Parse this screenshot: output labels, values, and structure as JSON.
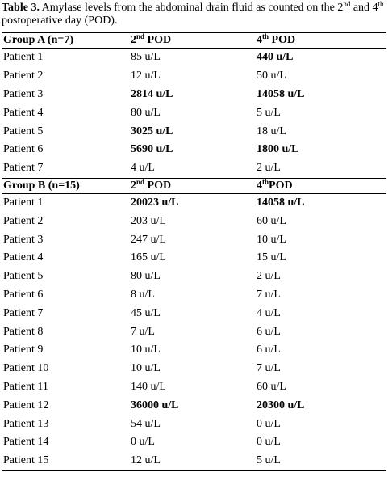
{
  "caption": {
    "label": "Table 3.",
    "parts": [
      " Amylase levels from the abdominal drain fluid as counted on the ",
      "2",
      "nd",
      " and ",
      "4",
      "th",
      " postoperative day (POD)."
    ]
  },
  "groups": [
    {
      "header": {
        "group": "Group A (n=7)",
        "pod2": {
          "number": "2",
          "suffix": "nd",
          "rest": " POD"
        },
        "pod4": {
          "number": "4",
          "suffix": "th",
          "rest": " POD"
        }
      },
      "rows": [
        {
          "patient": "Patient 1",
          "pod2": "85 u/L",
          "pod4": "440 u/L",
          "bold": [
            false,
            true
          ]
        },
        {
          "patient": "Patient 2",
          "pod2": "12 u/L",
          "pod4": "50 u/L",
          "bold": [
            false,
            false
          ]
        },
        {
          "patient": "Patient 3",
          "pod2": "2814 u/L",
          "pod4": "14058 u/L",
          "bold": [
            true,
            true
          ]
        },
        {
          "patient": "Patient 4",
          "pod2": "80 u/L",
          "pod4": "5 u/L",
          "bold": [
            false,
            false
          ]
        },
        {
          "patient": "Patient 5",
          "pod2": "3025 u/L",
          "pod4": "18 u/L",
          "bold": [
            true,
            false
          ]
        },
        {
          "patient": "Patient 6",
          "pod2": "5690 u/L",
          "pod4": "1800 u/L",
          "bold": [
            true,
            true
          ]
        },
        {
          "patient": "Patient 7",
          "pod2": "4 u/L",
          "pod4": "2 u/L",
          "bold": [
            false,
            false
          ]
        }
      ]
    },
    {
      "header": {
        "group": "Group B (n=15)",
        "pod2": {
          "number": "2",
          "suffix": "nd",
          "rest": " POD"
        },
        "pod4": {
          "number": "4",
          "suffix": "th",
          "rest": "POD"
        }
      },
      "rows": [
        {
          "patient": "Patient 1",
          "pod2": "20023 u/L",
          "pod4": "14058 u/L",
          "bold": [
            true,
            true
          ]
        },
        {
          "patient": "Patient 2",
          "pod2": "203 u/L",
          "pod4": "60 u/L",
          "bold": [
            false,
            false
          ]
        },
        {
          "patient": "Patient 3",
          "pod2": "247 u/L",
          "pod4": "10 u/L",
          "bold": [
            false,
            false
          ]
        },
        {
          "patient": "Patient 4",
          "pod2": "165 u/L",
          "pod4": "15 u/L",
          "bold": [
            false,
            false
          ]
        },
        {
          "patient": "Patient 5",
          "pod2": "80 u/L",
          "pod4": "2 u/L",
          "bold": [
            false,
            false
          ]
        },
        {
          "patient": "Patient 6",
          "pod2": "8 u/L",
          "pod4": "7 u/L",
          "bold": [
            false,
            false
          ]
        },
        {
          "patient": "Patient 7",
          "pod2": "45 u/L",
          "pod4": "4 u/L",
          "bold": [
            false,
            false
          ]
        },
        {
          "patient": "Patient 8",
          "pod2": "7 u/L",
          "pod4": "6 u/L",
          "bold": [
            false,
            false
          ]
        },
        {
          "patient": "Patient 9",
          "pod2": "10 u/L",
          "pod4": "6 u/L",
          "bold": [
            false,
            false
          ]
        },
        {
          "patient": "Patient 10",
          "pod2": "10 u/L",
          "pod4": "7 u/L",
          "bold": [
            false,
            false
          ]
        },
        {
          "patient": "Patient 11",
          "pod2": "140 u/L",
          "pod4": "60 u/L",
          "bold": [
            false,
            false
          ]
        },
        {
          "patient": "Patient 12",
          "pod2": "36000 u/L",
          "pod4": "20300 u/L",
          "bold": [
            true,
            true
          ]
        },
        {
          "patient": "Patient 13",
          "pod2": "54 u/L",
          "pod4": "0 u/L",
          "bold": [
            false,
            false
          ]
        },
        {
          "patient": "Patient 14",
          "pod2": "0 u/L",
          "pod4": "0 u/L",
          "bold": [
            false,
            false
          ]
        },
        {
          "patient": "Patient 15",
          "pod2": "12 u/L",
          "pod4": "5 u/L",
          "bold": [
            false,
            false
          ]
        }
      ]
    }
  ]
}
